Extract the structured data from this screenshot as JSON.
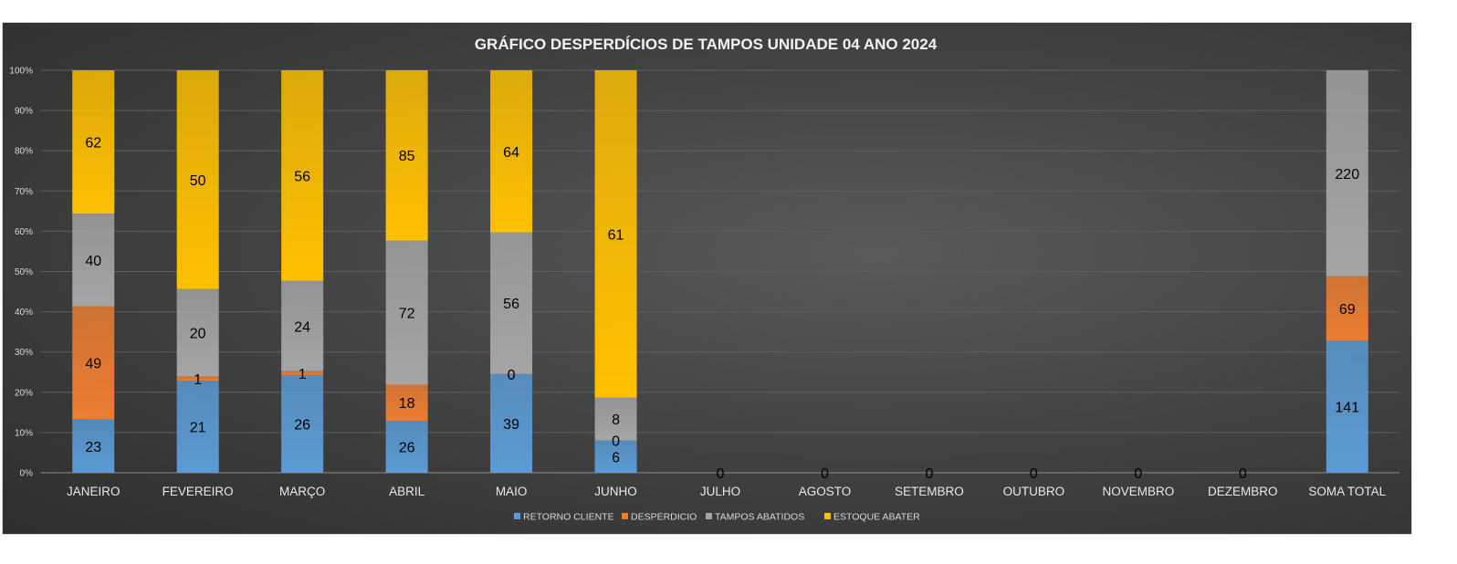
{
  "chart_data": {
    "type": "bar",
    "stacked": "percent",
    "title": "GRÁFICO DESPERDÍCIOS  DE  TAMPOS  UNIDADE 04 ANO 2024",
    "categories": [
      "JANEIRO",
      "FEVEREIRO",
      "MARÇO",
      "ABRIL",
      "MAIO",
      "JUNHO",
      "JULHO",
      "AGOSTO",
      "SETEMBRO",
      "OUTUBRO",
      "NOVEMBRO",
      "DEZEMBRO",
      "SOMA TOTAL"
    ],
    "y_ticks": [
      "0%",
      "10%",
      "20%",
      "30%",
      "40%",
      "50%",
      "60%",
      "70%",
      "80%",
      "90%",
      "100%"
    ],
    "ylim": [
      0,
      1
    ],
    "grid": true,
    "legend_position": "bottom",
    "series": [
      {
        "name": "RETORNO CLIENTE",
        "color": "#5b9bd5",
        "values": [
          23,
          21,
          26,
          26,
          39,
          6,
          0,
          0,
          0,
          0,
          0,
          0,
          141
        ]
      },
      {
        "name": "DESPERDICIO",
        "color": "#ed7d31",
        "values": [
          49,
          1,
          1,
          18,
          0,
          0,
          0,
          0,
          0,
          0,
          0,
          0,
          69
        ]
      },
      {
        "name": "TAMPOS ABATIDOS",
        "color": "#a5a5a5",
        "values": [
          40,
          20,
          24,
          72,
          56,
          8,
          0,
          0,
          0,
          0,
          0,
          0,
          220
        ]
      },
      {
        "name": "ESTOQUE ABATER",
        "color": "#ffc000",
        "values": [
          62,
          50,
          56,
          85,
          64,
          61,
          0,
          0,
          0,
          0,
          0,
          0,
          0
        ]
      }
    ]
  }
}
